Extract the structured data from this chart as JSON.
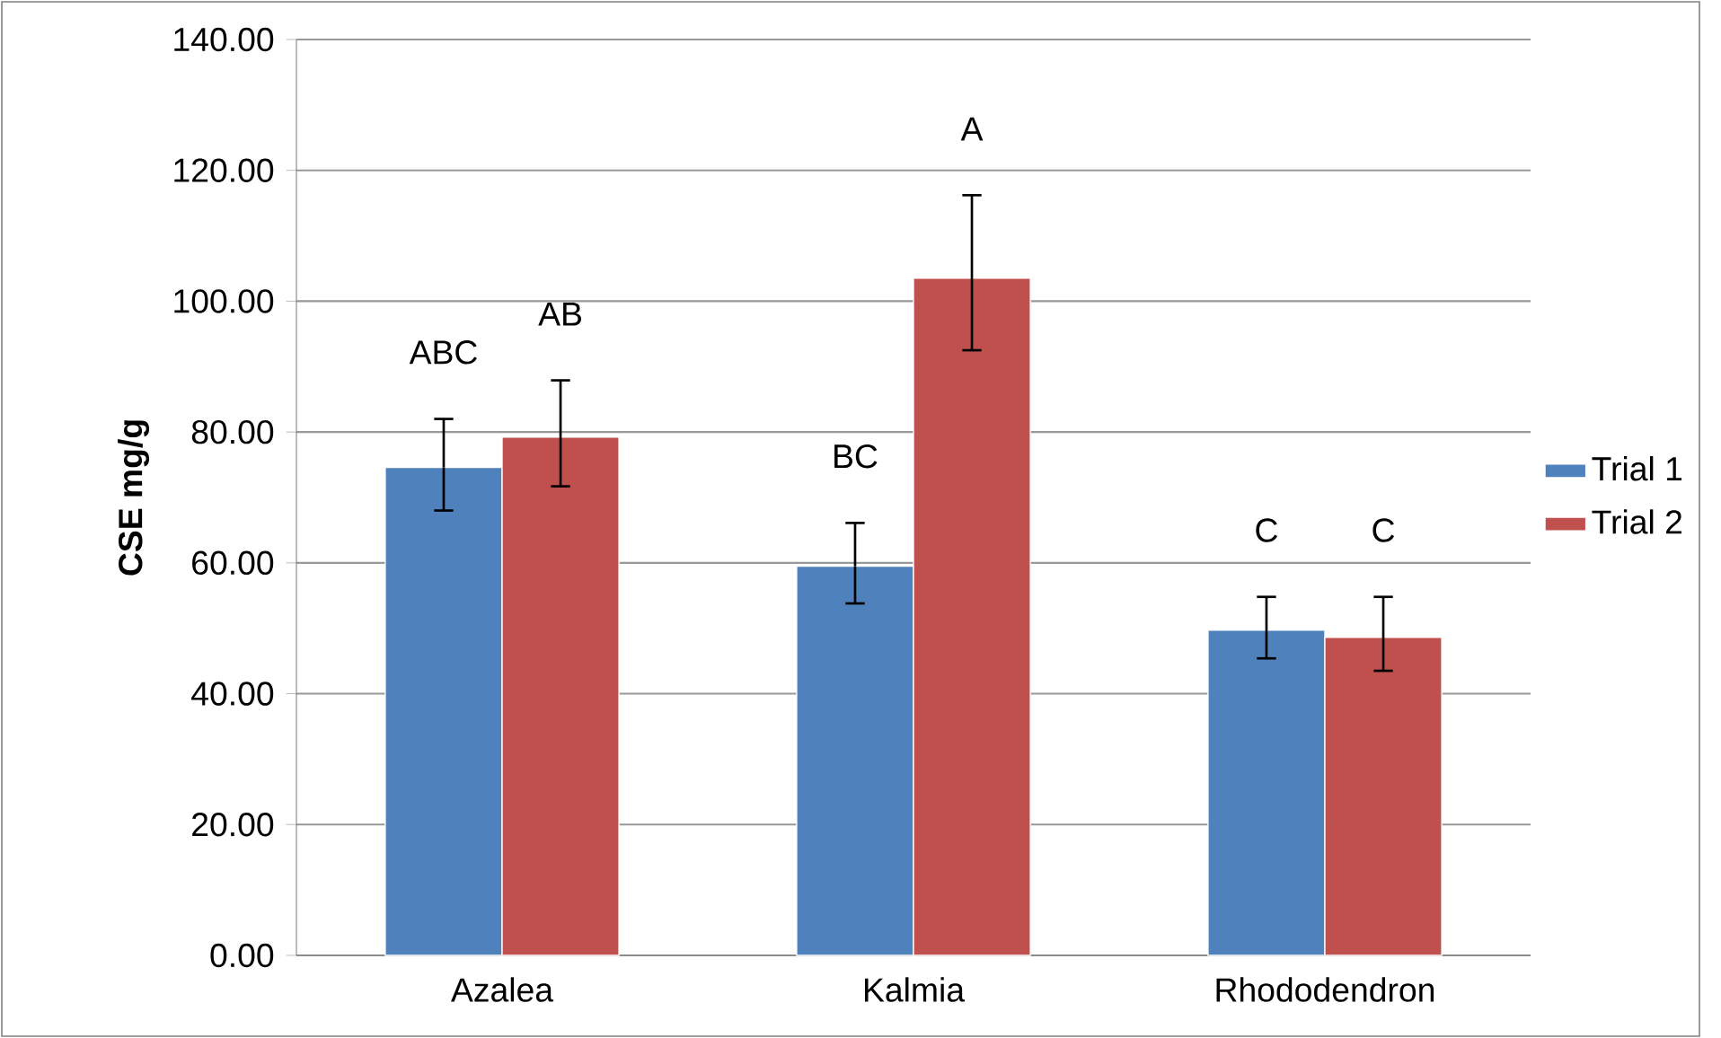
{
  "chart_data": {
    "type": "bar",
    "categories": [
      "Azalea",
      "Kalmia",
      "Rhododendron"
    ],
    "series": [
      {
        "name": "Trial 1",
        "color": "#4f81bd",
        "values": [
          74.6,
          59.5,
          49.7
        ],
        "errors": [
          [
            68.0,
            82.0
          ],
          [
            53.8,
            66.1
          ],
          [
            45.4,
            54.8
          ]
        ]
      },
      {
        "name": "Trial 2",
        "color": "#c0504d",
        "values": [
          79.2,
          103.5,
          48.6
        ],
        "errors": [
          [
            71.7,
            87.9
          ],
          [
            92.5,
            116.2
          ],
          [
            43.5,
            54.8
          ]
        ]
      }
    ],
    "ylabel": "CSE mg/g",
    "ylim": [
      0,
      140
    ],
    "yticks": [
      {
        "value": 0,
        "label": "0.00"
      },
      {
        "value": 20,
        "label": "20.00"
      },
      {
        "value": 40,
        "label": "40.00"
      },
      {
        "value": 60,
        "label": "60.00"
      },
      {
        "value": 80,
        "label": "80.00"
      },
      {
        "value": 100,
        "label": "100.00"
      },
      {
        "value": 120,
        "label": "120.00"
      },
      {
        "value": 140,
        "label": "140.00"
      }
    ],
    "grid": "y",
    "legend": "right",
    "annotations": [
      "ABC",
      "AB",
      "BC",
      "A",
      "C",
      "C"
    ]
  }
}
